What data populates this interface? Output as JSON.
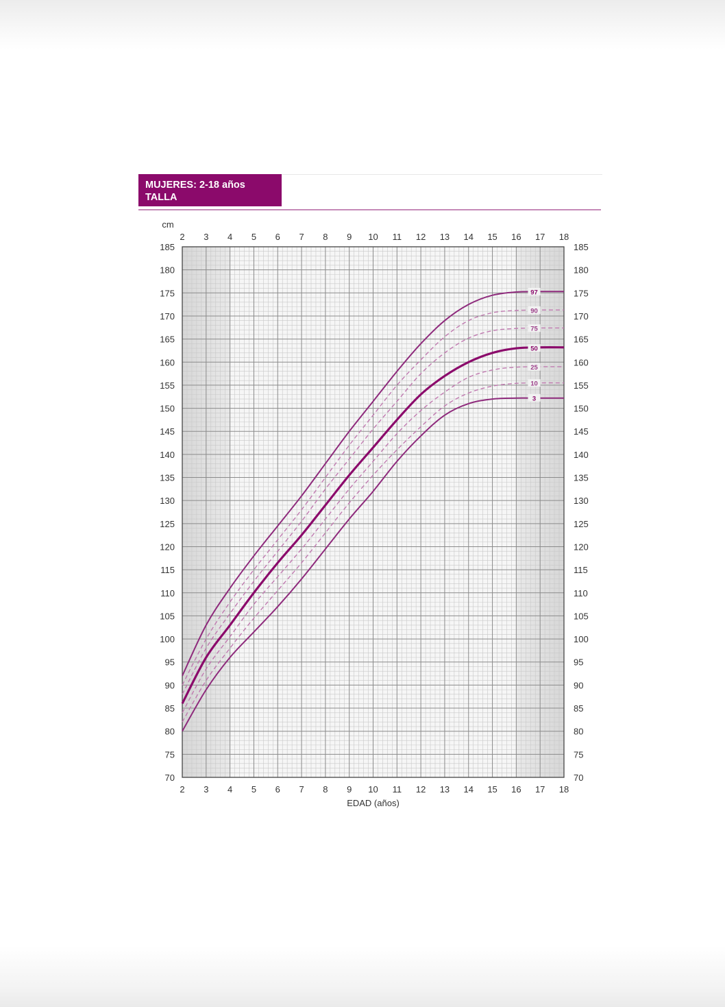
{
  "header": {
    "line1": "MUJERES: 2-18 años",
    "line2": "TALLA"
  },
  "colors": {
    "accent": "#8b0a6b",
    "curve": "#8e2a7c",
    "dashed_curve": "#c07ab0",
    "grid_dark": "#8a8a8a",
    "grid_light": "#c8c8c8"
  },
  "chart_data": {
    "type": "line",
    "title": "",
    "xlabel": "EDAD (años)",
    "ylabel": "cm",
    "xlim": [
      2,
      18
    ],
    "ylim": [
      70,
      185
    ],
    "x_ticks": [
      2,
      3,
      4,
      5,
      6,
      7,
      8,
      9,
      10,
      11,
      12,
      13,
      14,
      15,
      16,
      17,
      18
    ],
    "y_ticks": [
      70,
      75,
      80,
      85,
      90,
      95,
      100,
      105,
      110,
      115,
      120,
      125,
      130,
      135,
      140,
      145,
      150,
      155,
      160,
      165,
      170,
      175,
      180,
      185
    ],
    "grid": true,
    "shaded_age_ranges": [
      [
        2,
        4
      ],
      [
        16,
        18
      ]
    ],
    "x": [
      2,
      3,
      4,
      5,
      6,
      7,
      8,
      9,
      10,
      11,
      12,
      13,
      14,
      15,
      16,
      17,
      18
    ],
    "series": [
      {
        "name": "97",
        "style": "solid",
        "values": [
          92,
          103,
          111,
          118,
          124.5,
          131,
          138,
          145,
          151.5,
          158,
          164,
          169,
          172.5,
          174.5,
          175.2,
          175.3,
          175.3
        ]
      },
      {
        "name": "90",
        "style": "dashed",
        "values": [
          90,
          100,
          108,
          115,
          121.5,
          128,
          135,
          142,
          148.5,
          155,
          160.5,
          165.5,
          169,
          170.7,
          171.2,
          171.3,
          171.3
        ]
      },
      {
        "name": "75",
        "style": "dashed",
        "values": [
          88,
          98,
          105.5,
          112.5,
          119,
          125.5,
          132.5,
          139,
          145.5,
          151.5,
          157.5,
          162,
          165.2,
          166.8,
          167.3,
          167.4,
          167.4
        ]
      },
      {
        "name": "50",
        "style": "bold",
        "values": [
          86,
          96,
          103,
          110,
          116.5,
          122.5,
          129,
          135.5,
          141.5,
          147.5,
          153,
          157,
          160,
          162,
          163,
          163.2,
          163.2
        ]
      },
      {
        "name": "25",
        "style": "dashed",
        "values": [
          84,
          93.5,
          100.5,
          107.5,
          113.5,
          119.5,
          126,
          132.5,
          138.5,
          144.5,
          149.5,
          153.5,
          156.7,
          158.3,
          158.9,
          159,
          159
        ]
      },
      {
        "name": "10",
        "style": "dashed",
        "values": [
          82,
          91,
          98,
          104.5,
          110.5,
          116.5,
          123,
          129.5,
          135.5,
          141,
          146,
          150.5,
          153.3,
          154.8,
          155.4,
          155.5,
          155.5
        ]
      },
      {
        "name": "3",
        "style": "solid",
        "values": [
          80,
          89,
          96,
          101.5,
          107,
          113,
          119.5,
          126,
          132,
          138.5,
          144,
          148.5,
          151,
          152,
          152.2,
          152.2,
          152.2
        ]
      }
    ]
  }
}
